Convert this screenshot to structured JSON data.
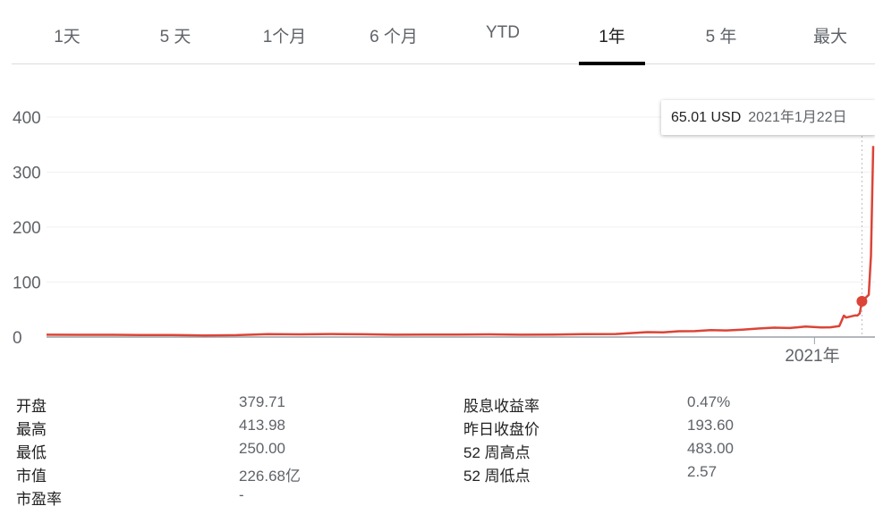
{
  "tabs": [
    {
      "label": "1天",
      "active": false
    },
    {
      "label": "5 天",
      "active": false
    },
    {
      "label": "1个月",
      "active": false
    },
    {
      "label": "6 个月",
      "active": false
    },
    {
      "label": "YTD",
      "active": false
    },
    {
      "label": "1年",
      "active": true
    },
    {
      "label": "5 年",
      "active": false
    },
    {
      "label": "最大",
      "active": false
    }
  ],
  "tooltip": {
    "price": "65.01 USD",
    "date": "2021年1月22日"
  },
  "chart_data": {
    "type": "line",
    "line_color": "#db4437",
    "ylim": [
      0,
      400
    ],
    "yticks": [
      0,
      100,
      200,
      300,
      400
    ],
    "ytick_labels": [
      "0",
      "100",
      "200",
      "300",
      "400"
    ],
    "xlim": [
      "2020-01-27",
      "2021-01-27"
    ],
    "xticks": [
      {
        "date": "2021-01-01",
        "label": "2021年"
      }
    ],
    "grid": true,
    "highlight": {
      "date": "2021-01-22",
      "value": 65.01
    },
    "points": [
      [
        "2020-01-27",
        4.2
      ],
      [
        "2020-02-10",
        4.1
      ],
      [
        "2020-02-24",
        4.0
      ],
      [
        "2020-03-09",
        3.8
      ],
      [
        "2020-03-23",
        3.6
      ],
      [
        "2020-04-06",
        3.0
      ],
      [
        "2020-04-20",
        3.4
      ],
      [
        "2020-05-04",
        5.2
      ],
      [
        "2020-05-18",
        4.8
      ],
      [
        "2020-06-01",
        5.5
      ],
      [
        "2020-06-15",
        5.0
      ],
      [
        "2020-06-29",
        4.2
      ],
      [
        "2020-07-13",
        4.6
      ],
      [
        "2020-07-27",
        4.4
      ],
      [
        "2020-08-10",
        4.8
      ],
      [
        "2020-08-24",
        4.3
      ],
      [
        "2020-09-07",
        4.6
      ],
      [
        "2020-09-21",
        5.2
      ],
      [
        "2020-10-05",
        5.6
      ],
      [
        "2020-10-19",
        9.0
      ],
      [
        "2020-10-26",
        8.5
      ],
      [
        "2020-11-02",
        10.5
      ],
      [
        "2020-11-09",
        10.8
      ],
      [
        "2020-11-16",
        12.5
      ],
      [
        "2020-11-23",
        12.0
      ],
      [
        "2020-11-30",
        13.5
      ],
      [
        "2020-12-07",
        15.5
      ],
      [
        "2020-12-14",
        17.0
      ],
      [
        "2020-12-21",
        16.5
      ],
      [
        "2020-12-28",
        19.0
      ],
      [
        "2021-01-04",
        17.5
      ],
      [
        "2021-01-08",
        17.7
      ],
      [
        "2021-01-12",
        20.0
      ],
      [
        "2021-01-14",
        39.0
      ],
      [
        "2021-01-15",
        35.5
      ],
      [
        "2021-01-19",
        39.4
      ],
      [
        "2021-01-20",
        39.1
      ],
      [
        "2021-01-21",
        43.0
      ],
      [
        "2021-01-22",
        65.01
      ],
      [
        "2021-01-25",
        76.8
      ],
      [
        "2021-01-26",
        147.9
      ],
      [
        "2021-01-27",
        347.5
      ]
    ]
  },
  "stats": {
    "left": [
      {
        "label": "开盘",
        "value": "379.71"
      },
      {
        "label": "最高",
        "value": "413.98"
      },
      {
        "label": "最低",
        "value": "250.00"
      },
      {
        "label": "市值",
        "value": "226.68亿"
      },
      {
        "label": "市盈率",
        "value": "-"
      }
    ],
    "right": [
      {
        "label": "股息收益率",
        "value": "0.47%"
      },
      {
        "label": "昨日收盘价",
        "value": "193.60"
      },
      {
        "label": "52 周高点",
        "value": "483.00"
      },
      {
        "label": "52 周低点",
        "value": "2.57"
      }
    ]
  }
}
